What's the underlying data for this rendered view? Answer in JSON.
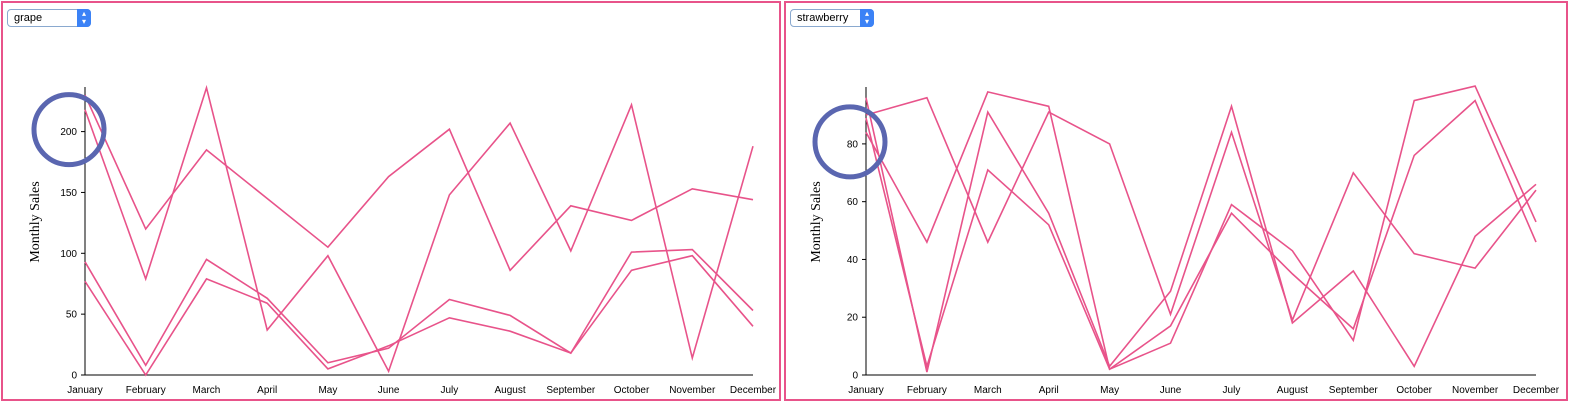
{
  "colors": {
    "line": "#e8538a",
    "frame": "#e8538a",
    "highlight": "#5a66b0",
    "select_arrow": "#3b82f6"
  },
  "charts": [
    {
      "selector": {
        "value": "grape",
        "icon": "up-down-chevron-icon"
      }
    },
    {
      "selector": {
        "value": "strawberry",
        "icon": "up-down-chevron-icon"
      }
    }
  ],
  "chart_data": [
    {
      "type": "line",
      "ylabel": "Monthly Sales",
      "ylim": [
        0,
        235
      ],
      "yticks": [
        0,
        50,
        100,
        150,
        200
      ],
      "categories": [
        "January",
        "February",
        "March",
        "April",
        "May",
        "June",
        "July",
        "August",
        "September",
        "October",
        "November",
        "December"
      ],
      "series": [
        {
          "values": [
            230,
            120,
            185,
            145,
            105,
            163,
            202,
            86,
            139,
            127,
            153,
            144
          ]
        },
        {
          "values": [
            218,
            79,
            236,
            37,
            98,
            3,
            148,
            207,
            102,
            222,
            14,
            188
          ]
        },
        {
          "values": [
            93,
            8,
            95,
            63,
            10,
            22,
            62,
            49,
            18,
            101,
            103,
            53
          ]
        },
        {
          "values": [
            77,
            0,
            79,
            59,
            5,
            24,
            47,
            36,
            18,
            86,
            98,
            40
          ]
        }
      ],
      "annotation": {
        "type": "circle",
        "at_value": 200,
        "category": "January"
      }
    },
    {
      "type": "line",
      "ylabel": "Monthly Sales",
      "ylim": [
        0,
        99
      ],
      "yticks": [
        0,
        20,
        40,
        60,
        80
      ],
      "categories": [
        "January",
        "February",
        "March",
        "April",
        "May",
        "June",
        "July",
        "August",
        "September",
        "October",
        "November",
        "December"
      ],
      "series": [
        {
          "values": [
            96,
            1,
            91,
            56,
            3,
            29,
            93,
            18,
            36,
            3,
            48,
            66
          ]
        },
        {
          "values": [
            90,
            96,
            46,
            91,
            80,
            21,
            84,
            19,
            70,
            42,
            37,
            64
          ]
        },
        {
          "values": [
            84,
            46,
            98,
            93,
            2,
            11,
            59,
            43,
            12,
            95,
            100,
            53
          ]
        },
        {
          "values": [
            89,
            3,
            71,
            52,
            2,
            17,
            56,
            35,
            16,
            76,
            95,
            46
          ]
        }
      ],
      "annotation": {
        "type": "circle",
        "at_value": 80,
        "category": "January"
      }
    }
  ]
}
